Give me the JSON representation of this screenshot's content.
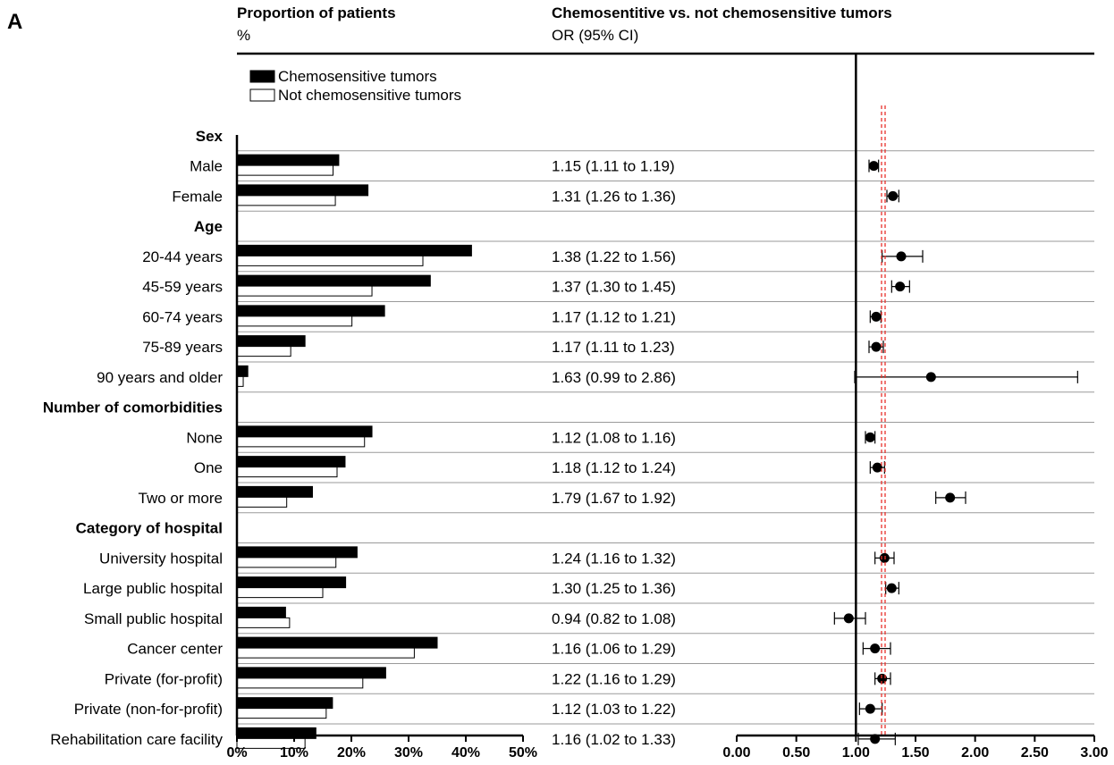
{
  "panel_label": "A",
  "headers": {
    "left_title": "Proportion of patients",
    "left_unit": "%",
    "right_title": "Chemosentitive vs. not chemosensitive tumors",
    "right_unit": "OR (95% CI)"
  },
  "legend": {
    "position": "top-left",
    "items": [
      {
        "label": "Chemosensitive tumors",
        "fill": "#000000"
      },
      {
        "label": "Not chemosensitive tumors",
        "fill": "#ffffff"
      }
    ]
  },
  "chart_data": [
    {
      "type": "bar",
      "orientation": "horizontal",
      "title": "Proportion of patients",
      "xlabel": "%",
      "xlim": [
        0,
        50
      ],
      "x_ticks": [
        "0%",
        "10%",
        "20%",
        "30%",
        "40%",
        "50%"
      ],
      "rows": [
        {
          "label": "Sex",
          "header": true
        },
        {
          "label": "Male",
          "chemo": 17.8,
          "not": 16.8
        },
        {
          "label": "Female",
          "chemo": 22.9,
          "not": 17.2
        },
        {
          "label": "Age",
          "header": true
        },
        {
          "label": "20-44 years",
          "chemo": 41.0,
          "not": 32.5
        },
        {
          "label": "45-59 years",
          "chemo": 33.8,
          "not": 23.6
        },
        {
          "label": "60-74 years",
          "chemo": 25.8,
          "not": 20.1
        },
        {
          "label": "75-89 years",
          "chemo": 11.9,
          "not": 9.4
        },
        {
          "label": "90 years and older",
          "chemo": 1.9,
          "not": 1.1
        },
        {
          "label": "Number of comorbidities",
          "header": true
        },
        {
          "label": "None",
          "chemo": 23.6,
          "not": 22.3
        },
        {
          "label": "One",
          "chemo": 18.9,
          "not": 17.5
        },
        {
          "label": "Two or more",
          "chemo": 13.2,
          "not": 8.7
        },
        {
          "label": "Category of hospital",
          "header": true
        },
        {
          "label": "University hospital",
          "chemo": 21.0,
          "not": 17.3
        },
        {
          "label": "Large public hospital",
          "chemo": 19.0,
          "not": 15.0
        },
        {
          "label": "Small public hospital",
          "chemo": 8.5,
          "not": 9.2
        },
        {
          "label": "Cancer center",
          "chemo": 35.0,
          "not": 31.0
        },
        {
          "label": "Private (for-profit)",
          "chemo": 26.0,
          "not": 22.0
        },
        {
          "label": "Private (non-for-profit)",
          "chemo": 16.7,
          "not": 15.6
        },
        {
          "label": "Rehabilitation care facility",
          "chemo": 13.8,
          "not": 11.9
        }
      ]
    },
    {
      "type": "scatter",
      "subtype": "forest",
      "title": "Chemosentitive vs. not chemosensitive tumors",
      "xlabel": "OR (95% CI)",
      "xlim": [
        0,
        3
      ],
      "x_ticks": [
        "0.00",
        "0.50",
        "1.00",
        "1.50",
        "2.00",
        "2.50",
        "3.00"
      ],
      "reference_line": 1.0,
      "pooled_line": 1.23,
      "rows": [
        {
          "label": "Male",
          "text": "1.15 (1.11 to 1.19)",
          "or": 1.15,
          "lo": 1.11,
          "hi": 1.19
        },
        {
          "label": "Female",
          "text": "1.31 (1.26 to 1.36)",
          "or": 1.31,
          "lo": 1.26,
          "hi": 1.36
        },
        {
          "label": "20-44 years",
          "text": "1.38 (1.22 to 1.56)",
          "or": 1.38,
          "lo": 1.22,
          "hi": 1.56
        },
        {
          "label": "45-59 years",
          "text": "1.37 (1.30 to 1.45)",
          "or": 1.37,
          "lo": 1.3,
          "hi": 1.45
        },
        {
          "label": "60-74 years",
          "text": "1.17 (1.12 to 1.21)",
          "or": 1.17,
          "lo": 1.12,
          "hi": 1.21
        },
        {
          "label": "75-89 years",
          "text": "1.17 (1.11 to 1.23)",
          "or": 1.17,
          "lo": 1.11,
          "hi": 1.23
        },
        {
          "label": "90 years and older",
          "text": "1.63 (0.99 to 2.86)",
          "or": 1.63,
          "lo": 0.99,
          "hi": 2.86
        },
        {
          "label": "None",
          "text": "1.12 (1.08 to 1.16)",
          "or": 1.12,
          "lo": 1.08,
          "hi": 1.16
        },
        {
          "label": "One",
          "text": "1.18 (1.12 to 1.24)",
          "or": 1.18,
          "lo": 1.12,
          "hi": 1.24
        },
        {
          "label": "Two or more",
          "text": "1.79 (1.67 to 1.92)",
          "or": 1.79,
          "lo": 1.67,
          "hi": 1.92
        },
        {
          "label": "University hospital",
          "text": "1.24 (1.16 to 1.32)",
          "or": 1.24,
          "lo": 1.16,
          "hi": 1.32
        },
        {
          "label": "Large public hospital",
          "text": "1.30 (1.25 to 1.36)",
          "or": 1.3,
          "lo": 1.25,
          "hi": 1.36
        },
        {
          "label": "Small public hospital",
          "text": "0.94 (0.82 to 1.08)",
          "or": 0.94,
          "lo": 0.82,
          "hi": 1.08
        },
        {
          "label": "Cancer center",
          "text": "1.16 (1.06 to 1.29)",
          "or": 1.16,
          "lo": 1.06,
          "hi": 1.29
        },
        {
          "label": "Private (for-profit)",
          "text": "1.22 (1.16 to 1.29)",
          "or": 1.22,
          "lo": 1.16,
          "hi": 1.29
        },
        {
          "label": "Private (non-for-profit)",
          "text": "1.12 (1.03 to 1.22)",
          "or": 1.12,
          "lo": 1.03,
          "hi": 1.22
        },
        {
          "label": "Rehabilitation care facility",
          "text": "1.16 (1.02 to 1.33)",
          "or": 1.16,
          "lo": 1.02,
          "hi": 1.33
        }
      ]
    }
  ],
  "colors": {
    "bar_chemo": "#000000",
    "bar_not": "#ffffff",
    "pooled_line": "#e8312b",
    "separator": "#9a9a9a"
  }
}
